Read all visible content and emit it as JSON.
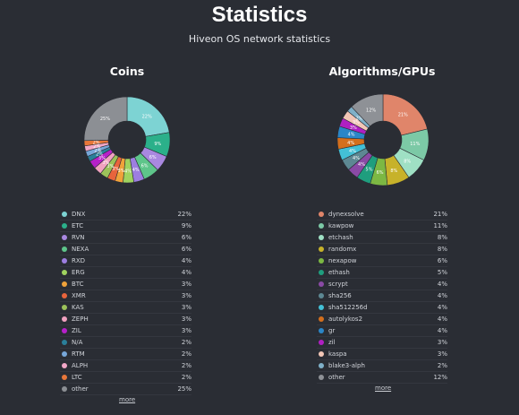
{
  "header": {
    "title": "Statistics",
    "subtitle": "Hiveon OS network statistics"
  },
  "coins": {
    "title": "Coins",
    "more_label": "more",
    "items": [
      {
        "name": "DNX",
        "pct": "22%",
        "value": 22,
        "color": "#7dd3d3"
      },
      {
        "name": "ETC",
        "pct": "9%",
        "value": 9,
        "color": "#2bb08a"
      },
      {
        "name": "RVN",
        "pct": "6%",
        "value": 6,
        "color": "#a988e0"
      },
      {
        "name": "NEXA",
        "pct": "6%",
        "value": 6,
        "color": "#5ec58a"
      },
      {
        "name": "RXD",
        "pct": "4%",
        "value": 4,
        "color": "#9d7ee0"
      },
      {
        "name": "ERG",
        "pct": "4%",
        "value": 4,
        "color": "#9fd35f"
      },
      {
        "name": "BTC",
        "pct": "3%",
        "value": 3,
        "color": "#f0a23a"
      },
      {
        "name": "XMR",
        "pct": "3%",
        "value": 3,
        "color": "#e8643c"
      },
      {
        "name": "KAS",
        "pct": "3%",
        "value": 3,
        "color": "#9cc25a"
      },
      {
        "name": "ZEPH",
        "pct": "3%",
        "value": 3,
        "color": "#f1a2c0"
      },
      {
        "name": "ZIL",
        "pct": "3%",
        "value": 3,
        "color": "#b620c9"
      },
      {
        "name": "N/A",
        "pct": "2%",
        "value": 2,
        "color": "#2a7f9a"
      },
      {
        "name": "RTM",
        "pct": "2%",
        "value": 2,
        "color": "#77a7d9"
      },
      {
        "name": "ALPH",
        "pct": "2%",
        "value": 2,
        "color": "#f2a7c7"
      },
      {
        "name": "LTC",
        "pct": "2%",
        "value": 2,
        "color": "#e8773a"
      },
      {
        "name": "other",
        "pct": "25%",
        "value": 25,
        "color": "#8c8f94"
      }
    ],
    "slice_labels": [
      "22%",
      "9%",
      "6%",
      "6%",
      "4%",
      "4%",
      "3%",
      "3%",
      "3%",
      "3%",
      "3%",
      "2%",
      "2%",
      "2%",
      "2%",
      "25%"
    ]
  },
  "algos": {
    "title": "Algorithms/GPUs",
    "more_label": "more",
    "items": [
      {
        "name": "dynexsolve",
        "pct": "21%",
        "value": 21,
        "color": "#e0856a"
      },
      {
        "name": "kawpow",
        "pct": "11%",
        "value": 11,
        "color": "#7cc9a6"
      },
      {
        "name": "etchash",
        "pct": "8%",
        "value": 8,
        "color": "#9fe0c4"
      },
      {
        "name": "randomx",
        "pct": "8%",
        "value": 8,
        "color": "#c7b22a"
      },
      {
        "name": "nexapow",
        "pct": "6%",
        "value": 6,
        "color": "#7cb843"
      },
      {
        "name": "ethash",
        "pct": "5%",
        "value": 5,
        "color": "#1f9e7e"
      },
      {
        "name": "scrypt",
        "pct": "4%",
        "value": 4,
        "color": "#8a4aa5"
      },
      {
        "name": "sha256",
        "pct": "4%",
        "value": 4,
        "color": "#5d8893"
      },
      {
        "name": "sha512256d",
        "pct": "4%",
        "value": 4,
        "color": "#43c0d6"
      },
      {
        "name": "autolykos2",
        "pct": "4%",
        "value": 4,
        "color": "#d36f1d"
      },
      {
        "name": "gr",
        "pct": "4%",
        "value": 4,
        "color": "#2b86c7"
      },
      {
        "name": "zil",
        "pct": "3%",
        "value": 3,
        "color": "#b01fc2"
      },
      {
        "name": "kaspa",
        "pct": "3%",
        "value": 3,
        "color": "#f2c6b6"
      },
      {
        "name": "blake3-alph",
        "pct": "2%",
        "value": 2,
        "color": "#7fb0c8"
      },
      {
        "name": "other",
        "pct": "12%",
        "value": 12,
        "color": "#8e9196"
      }
    ],
    "slice_labels": [
      "21%",
      "11%",
      "8%",
      "8%",
      "6%",
      "5%",
      "4%",
      "4%",
      "4%",
      "4%",
      "4%",
      "3%",
      "3%",
      "2%",
      "12%"
    ]
  }
}
